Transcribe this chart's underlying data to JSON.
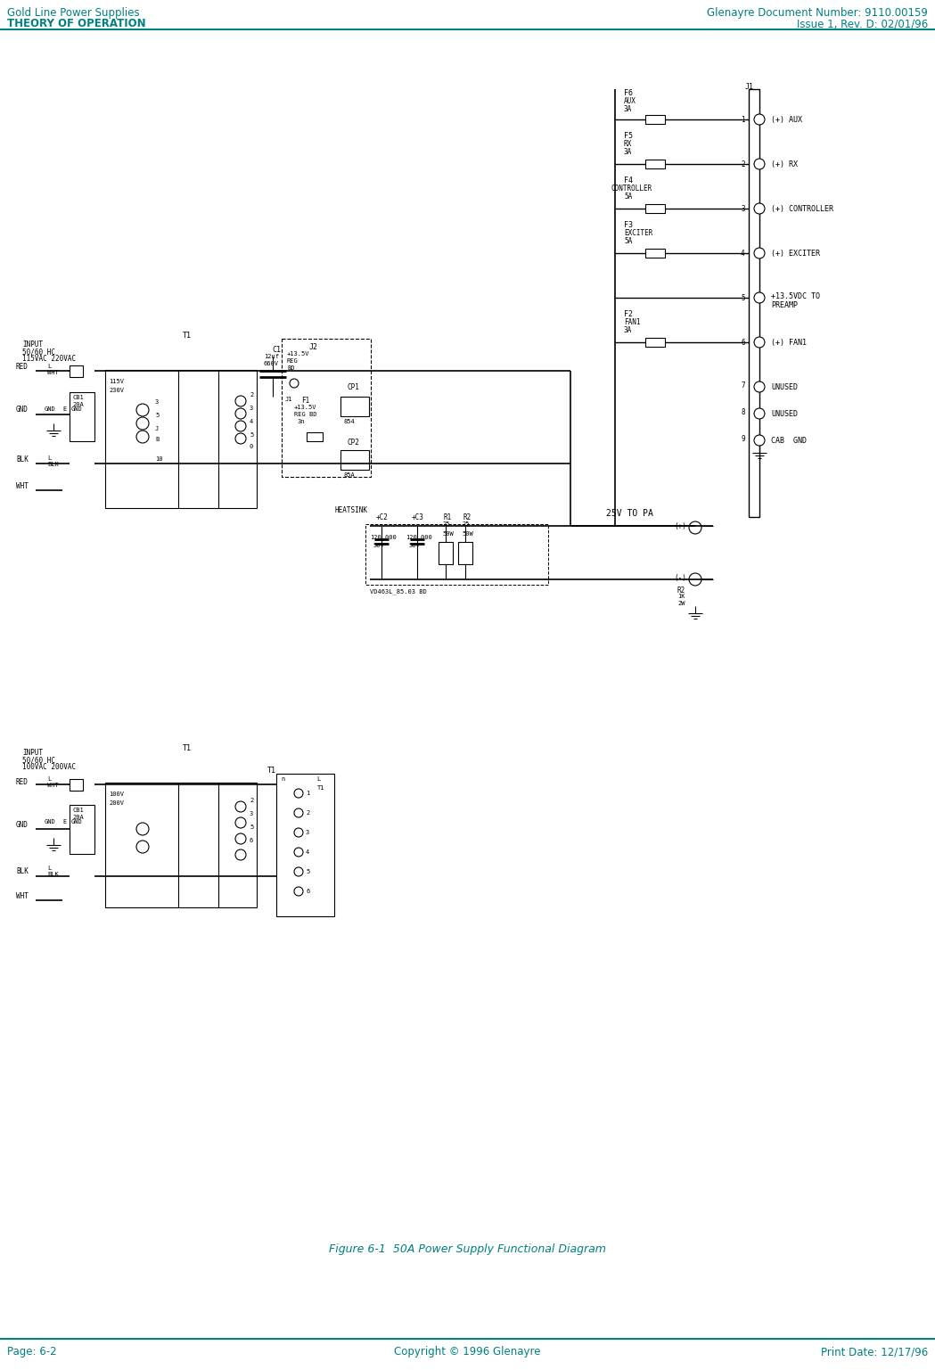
{
  "page_width": 10.49,
  "page_height": 15.37,
  "bg_color": "#ffffff",
  "teal_color": "#008080",
  "black_color": "#000000",
  "header_left_line1": "Gold Line Power Supplies",
  "header_left_line2": "THEORY OF OPERATION",
  "header_right_line1": "Glenayre Document Number: 9110.00159",
  "header_right_line2": "Issue 1, Rev. D: 02/01/96",
  "footer_left": "Page: 6-2",
  "footer_center": "Copyright © 1996 Glenayre",
  "footer_right": "Print Date: 12/17/96",
  "figure_caption": "Figure 6-1  50A Power Supply Functional Diagram"
}
